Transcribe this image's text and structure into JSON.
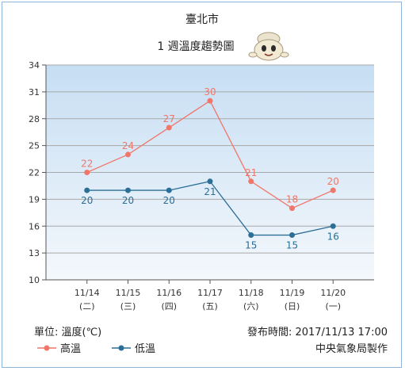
{
  "chart_data": {
    "type": "line",
    "title": "臺北市",
    "subtitle": "1 週溫度趨勢圖",
    "categories": [
      "11/14",
      "11/15",
      "11/16",
      "11/17",
      "11/18",
      "11/19",
      "11/20"
    ],
    "weekdays": [
      "(二)",
      "(三)",
      "(四)",
      "(五)",
      "(六)",
      "(日)",
      "(一)"
    ],
    "yticks": [
      10,
      13,
      16,
      19,
      22,
      25,
      28,
      31,
      34
    ],
    "ylim": [
      10,
      34
    ],
    "grid": true,
    "series": [
      {
        "name": "高溫",
        "values": [
          22,
          24,
          27,
          30,
          21,
          18,
          20
        ],
        "color": "#f0766a",
        "label_position": "above"
      },
      {
        "name": "低溫",
        "values": [
          20,
          20,
          20,
          21,
          15,
          15,
          16
        ],
        "color": "#2b6e96",
        "label_position": "below"
      }
    ],
    "legend_position": "bottom-left"
  },
  "footer": {
    "unit_label": "單位: 溫度(℃)",
    "issued_time": "發布時間: 2017/11/13 17:00",
    "agency": "中央氣象局製作"
  },
  "colors": {
    "plot_gradient_top": "#c6def3",
    "plot_gradient_bottom": "#f4f8fc",
    "grid": "#a9a9a9",
    "frame_border": "#8fb4d9"
  },
  "mascot_icon": "weather-mascot-icon"
}
